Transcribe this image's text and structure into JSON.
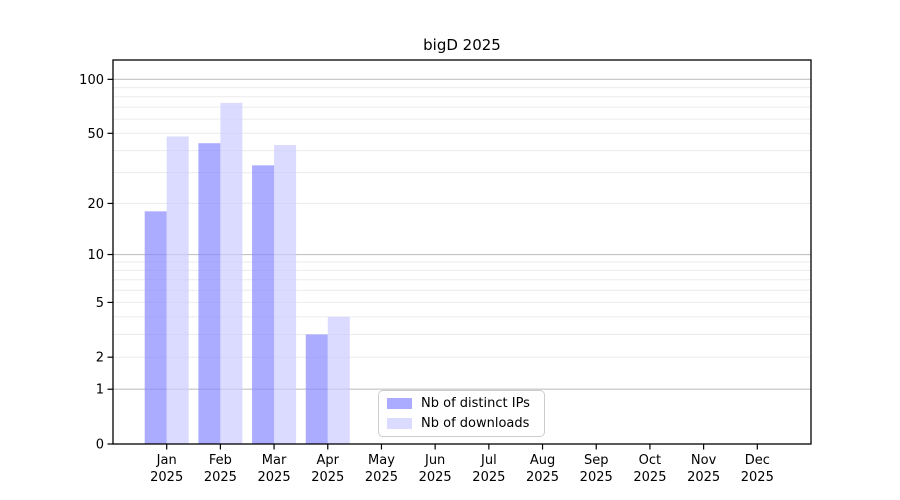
{
  "figure": {
    "background": "#ffffff"
  },
  "chart_data": {
    "type": "bar",
    "title": "bigD 2025",
    "categories": [
      "Jan",
      "Feb",
      "Mar",
      "Apr",
      "May",
      "Jun",
      "Jul",
      "Aug",
      "Sep",
      "Oct",
      "Nov",
      "Dec"
    ],
    "x_sublabel_year": "2025",
    "series": [
      {
        "name": "Nb of distinct IPs",
        "color": "#8888ff",
        "values": [
          18,
          44,
          33,
          3,
          0,
          0,
          0,
          0,
          0,
          0,
          0,
          0
        ]
      },
      {
        "name": "Nb of downloads",
        "color": "#ccccff",
        "values": [
          48,
          74,
          43,
          4,
          0,
          0,
          0,
          0,
          0,
          0,
          0,
          0
        ]
      }
    ],
    "bar_opacity": 0.7,
    "yscale": "log1p",
    "ylim": [
      0,
      128
    ],
    "yticks": [
      0,
      1,
      2,
      5,
      10,
      20,
      50,
      100
    ],
    "grid": {
      "major_values": [
        1,
        10,
        100
      ],
      "minor_values": [
        2,
        3,
        4,
        5,
        6,
        7,
        8,
        9,
        20,
        30,
        40,
        50,
        60,
        70,
        80,
        90
      ],
      "major_color": "#c2c2c2",
      "minor_color": "#ebebeb"
    },
    "legend_position": "lower center",
    "axis_color": "#000000",
    "text_color": "#000000"
  }
}
